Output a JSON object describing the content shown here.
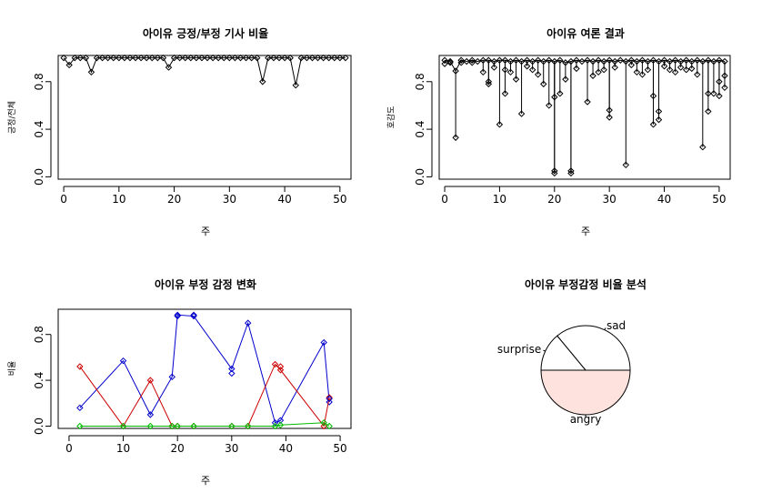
{
  "chart_data": [
    {
      "type": "line",
      "title": "아이유 긍정/부정 기사 비율",
      "xlabel": "주",
      "ylabel": "긍정/전체",
      "xlim": [
        -1,
        52
      ],
      "ylim": [
        -0.02,
        1.02
      ],
      "xticks": [
        "0",
        "10",
        "20",
        "30",
        "40",
        "50"
      ],
      "yticks": [
        "0.0",
        "0.4",
        "0.8"
      ],
      "x": [
        0,
        1,
        2,
        3,
        4,
        5,
        6,
        7,
        8,
        9,
        10,
        11,
        12,
        13,
        14,
        15,
        16,
        17,
        18,
        19,
        20,
        21,
        22,
        23,
        24,
        25,
        26,
        27,
        28,
        29,
        30,
        31,
        32,
        33,
        34,
        35,
        36,
        37,
        38,
        39,
        40,
        41,
        42,
        43,
        44,
        45,
        46,
        47,
        48,
        49,
        50,
        51
      ],
      "series": [
        {
          "color": "#000000",
          "type": "line-points",
          "values": [
            1,
            0.94,
            1,
            1,
            1,
            0.88,
            1,
            1,
            1,
            1,
            1,
            1,
            1,
            1,
            1,
            1,
            1,
            1,
            1,
            0.92,
            1,
            1,
            1,
            1,
            1,
            1,
            1,
            1,
            1,
            1,
            1,
            1,
            1,
            1,
            1,
            1,
            0.8,
            1,
            1,
            1,
            1,
            1,
            0.77,
            1,
            1,
            1,
            1,
            1,
            1,
            1,
            1,
            1
          ]
        }
      ]
    },
    {
      "type": "scatter",
      "title": "아이유 여론 결과",
      "xlabel": "주",
      "ylabel": "호감도",
      "xlim": [
        -1,
        52
      ],
      "ylim": [
        -0.02,
        1.02
      ],
      "xticks": [
        "0",
        "10",
        "20",
        "30",
        "40",
        "50"
      ],
      "yticks": [
        "0.0",
        "0.4",
        "0.8"
      ],
      "series": [
        {
          "color": "#000000",
          "type": "drop-lines",
          "points": [
            [
              0,
              0.98
            ],
            [
              0,
              0.95
            ],
            [
              1,
              0.97
            ],
            [
              1,
              0.96
            ],
            [
              2,
              0.89
            ],
            [
              2,
              0.33
            ],
            [
              3,
              0.98
            ],
            [
              3,
              0.96
            ],
            [
              4,
              0.97
            ],
            [
              5,
              0.98
            ],
            [
              5,
              0.96
            ],
            [
              6,
              0.97
            ],
            [
              7,
              0.98
            ],
            [
              7,
              0.88
            ],
            [
              8,
              0.98
            ],
            [
              8,
              0.8
            ],
            [
              8,
              0.78
            ],
            [
              9,
              0.97
            ],
            [
              9,
              0.92
            ],
            [
              10,
              0.98
            ],
            [
              10,
              0.44
            ],
            [
              11,
              0.98
            ],
            [
              11,
              0.9
            ],
            [
              11,
              0.7
            ],
            [
              12,
              0.97
            ],
            [
              12,
              0.88
            ],
            [
              13,
              0.98
            ],
            [
              13,
              0.82
            ],
            [
              14,
              0.97
            ],
            [
              14,
              0.53
            ],
            [
              15,
              0.98
            ],
            [
              15,
              0.93
            ],
            [
              16,
              0.97
            ],
            [
              16,
              0.9
            ],
            [
              17,
              0.98
            ],
            [
              17,
              0.86
            ],
            [
              18,
              0.97
            ],
            [
              18,
              0.78
            ],
            [
              19,
              0.98
            ],
            [
              19,
              0.6
            ],
            [
              20,
              0.97
            ],
            [
              20,
              0.67
            ],
            [
              20,
              0.05
            ],
            [
              20,
              0.03
            ],
            [
              21,
              0.98
            ],
            [
              21,
              0.7
            ],
            [
              22,
              0.96
            ],
            [
              22,
              0.82
            ],
            [
              23,
              0.97
            ],
            [
              23,
              0.05
            ],
            [
              23,
              0.03
            ],
            [
              24,
              0.98
            ],
            [
              24,
              0.91
            ],
            [
              25,
              0.97
            ],
            [
              26,
              0.98
            ],
            [
              26,
              0.63
            ],
            [
              27,
              0.97
            ],
            [
              27,
              0.85
            ],
            [
              28,
              0.98
            ],
            [
              28,
              0.88
            ],
            [
              29,
              0.97
            ],
            [
              29,
              0.9
            ],
            [
              30,
              0.98
            ],
            [
              30,
              0.56
            ],
            [
              30,
              0.5
            ],
            [
              31,
              0.97
            ],
            [
              31,
              0.92
            ],
            [
              32,
              0.98
            ],
            [
              33,
              0.97
            ],
            [
              33,
              0.1
            ],
            [
              34,
              0.98
            ],
            [
              34,
              0.94
            ],
            [
              35,
              0.97
            ],
            [
              35,
              0.88
            ],
            [
              36,
              0.98
            ],
            [
              36,
              0.86
            ],
            [
              37,
              0.97
            ],
            [
              37,
              0.9
            ],
            [
              38,
              0.98
            ],
            [
              38,
              0.68
            ],
            [
              38,
              0.44
            ],
            [
              39,
              0.97
            ],
            [
              39,
              0.55
            ],
            [
              39,
              0.48
            ],
            [
              40,
              0.98
            ],
            [
              40,
              0.93
            ],
            [
              41,
              0.97
            ],
            [
              41,
              0.9
            ],
            [
              42,
              0.98
            ],
            [
              42,
              0.88
            ],
            [
              43,
              0.97
            ],
            [
              43,
              0.92
            ],
            [
              44,
              0.98
            ],
            [
              44,
              0.9
            ],
            [
              45,
              0.97
            ],
            [
              45,
              0.91
            ],
            [
              46,
              0.98
            ],
            [
              46,
              0.86
            ],
            [
              47,
              0.97
            ],
            [
              47,
              0.25
            ],
            [
              48,
              0.98
            ],
            [
              48,
              0.7
            ],
            [
              48,
              0.55
            ],
            [
              49,
              0.97
            ],
            [
              49,
              0.7
            ],
            [
              50,
              0.98
            ],
            [
              50,
              0.8
            ],
            [
              50,
              0.68
            ],
            [
              51,
              0.97
            ],
            [
              51,
              0.75
            ],
            [
              51,
              0.85
            ]
          ]
        }
      ]
    },
    {
      "type": "line",
      "title": "아이유 부정 감정 변화",
      "xlabel": "주",
      "ylabel": "비율",
      "xlim": [
        -2,
        52
      ],
      "ylim": [
        -0.02,
        1.02
      ],
      "xticks": [
        "0",
        "10",
        "20",
        "30",
        "40",
        "50"
      ],
      "yticks": [
        "0.0",
        "0.4",
        "0.8"
      ],
      "x": [
        2,
        10,
        15,
        19,
        20,
        23,
        30,
        33,
        38,
        39,
        47,
        48
      ],
      "series": [
        {
          "color": "#0000cc",
          "values": [
            0.16,
            0.57,
            0.1,
            0.43,
            0.97,
            0.96,
            0.5,
            0.9,
            0.03,
            0.05,
            0.73,
            0.21
          ]
        },
        {
          "color": "#cc0000",
          "values": [
            0.52,
            0.0,
            0.4,
            0.0,
            0.0,
            0.0,
            0.0,
            0.0,
            0.54,
            0.49,
            0.0,
            0.25
          ]
        },
        {
          "color": "#00bb00",
          "values": [
            0.0,
            0.0,
            0.0,
            0.0,
            0.0,
            0.0,
            0.0,
            0.0,
            0.0,
            0.01,
            0.03,
            0.0
          ]
        }
      ],
      "extra_points": [
        {
          "x": 20,
          "y": 0.96,
          "color": "#0000cc"
        },
        {
          "x": 23,
          "y": 0.97,
          "color": "#0000cc"
        },
        {
          "x": 30,
          "y": 0.46,
          "color": "#0000cc"
        },
        {
          "x": 39,
          "y": 0.52,
          "color": "#cc0000"
        },
        {
          "x": 48,
          "y": 0.24,
          "color": "#0000cc"
        }
      ]
    },
    {
      "type": "pie",
      "title": "아이유 부정감정 비율 분석",
      "labels": [
        "sad",
        "surprise",
        "angry"
      ],
      "values": [
        0.36,
        0.14,
        0.5
      ],
      "colors": [
        "#ffffff",
        "#ffffff",
        "#fde2dd"
      ]
    }
  ]
}
